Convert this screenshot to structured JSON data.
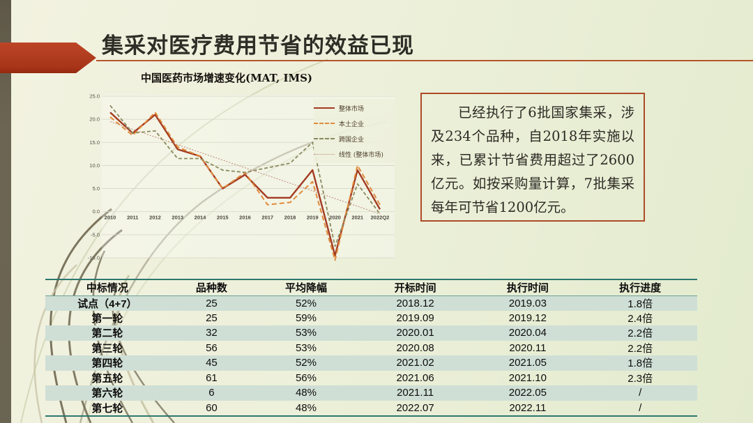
{
  "slide": {
    "title": "集采对医疗费用节省的效益已现",
    "note_box": {
      "text": "已经执行了6批国家集采，涉及234个品种，自2018年实施以来，已累计节省费用超过了2600亿元。如按采购量计算，7批集采每年可节省1200亿元。"
    }
  },
  "chart_data": {
    "type": "line",
    "title": "中国医药市场增速变化(MAT, IMS)",
    "categories": [
      "2010",
      "2011",
      "2012",
      "2013",
      "2014",
      "2015",
      "2016",
      "2017",
      "2018",
      "2019",
      "2020",
      "2021",
      "2022Q2"
    ],
    "series": [
      {
        "name": "整体市场",
        "color": "#a33b22",
        "dash": "",
        "width": 2.4,
        "values": [
          21.5,
          17.0,
          21.0,
          13.5,
          12.0,
          5.0,
          8.0,
          3.0,
          3.0,
          9.0,
          -9.5,
          9.0,
          0.5
        ]
      },
      {
        "name": "本土企业",
        "color": "#e08b3c",
        "dash": "7 4",
        "width": 2,
        "values": [
          20.5,
          16.5,
          21.5,
          14.0,
          12.0,
          5.0,
          8.5,
          1.5,
          2.0,
          6.5,
          -10.5,
          10.0,
          1.5
        ]
      },
      {
        "name": "跨国企业",
        "color": "#8a8a5e",
        "dash": "5 3",
        "width": 1.8,
        "values": [
          23.0,
          17.0,
          17.5,
          11.5,
          11.5,
          9.0,
          8.5,
          9.5,
          10.5,
          15.0,
          -7.5,
          6.0,
          -0.5
        ]
      },
      {
        "name": "线性 (整体市场)",
        "color": "#bb8878",
        "dash": "2 2",
        "width": 1,
        "trend": [
          19.5,
          -0.5
        ]
      }
    ],
    "ylim": [
      -10,
      25
    ],
    "ytick_step": 5,
    "grid": true,
    "legend_position": "right-top",
    "xlabel": "",
    "ylabel": ""
  },
  "table": {
    "headers": [
      "中标情况",
      "品种数",
      "平均降幅",
      "开标时间",
      "执行时间",
      "执行进度"
    ],
    "rows": [
      [
        "试点（4+7）",
        "25",
        "52%",
        "2018.12",
        "2019.03",
        "1.8倍"
      ],
      [
        "第一轮",
        "25",
        "59%",
        "2019.09",
        "2019.12",
        "2.4倍"
      ],
      [
        "第二轮",
        "32",
        "53%",
        "2020.01",
        "2020.04",
        "2.2倍"
      ],
      [
        "第三轮",
        "56",
        "53%",
        "2020.08",
        "2020.11",
        "2.2倍"
      ],
      [
        "第四轮",
        "45",
        "52%",
        "2021.02",
        "2021.05",
        "1.8倍"
      ],
      [
        "第五轮",
        "61",
        "56%",
        "2021.06",
        "2021.10",
        "2.3倍"
      ],
      [
        "第六轮",
        "6",
        "48%",
        "2021.11",
        "2022.05",
        "/"
      ],
      [
        "第七轮",
        "60",
        "48%",
        "2022.07",
        "2022.11",
        "/"
      ]
    ]
  },
  "colors": {
    "accent_red": "#b23a21",
    "title_rule": "#b4552c",
    "note_border": "#ad4a28",
    "table_border": "#2c786f",
    "table_row_tint": "#cfdfd5",
    "left_strip": "#6a6453",
    "background_left": "#f2f2e0",
    "background_right": "#e3ebce"
  }
}
